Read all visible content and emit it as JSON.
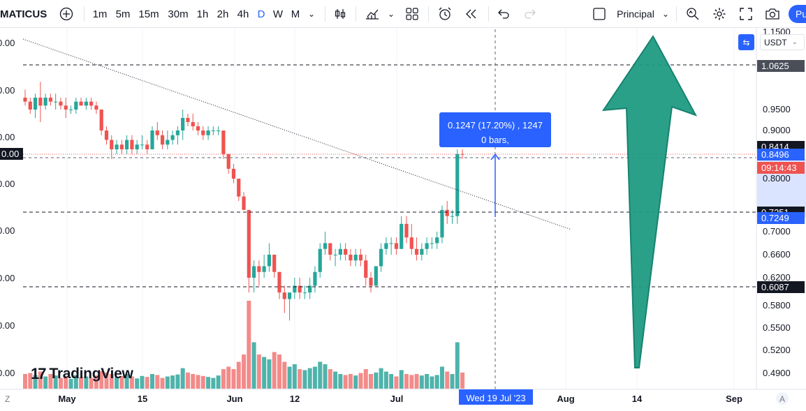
{
  "toolbar": {
    "symbol": "MATICUS",
    "add_symbol_icon": "plus-circle-icon",
    "intervals": [
      "1m",
      "5m",
      "15m",
      "30m",
      "1h",
      "2h",
      "4h",
      "D",
      "W",
      "M"
    ],
    "active_interval": "D",
    "layout_label": "Principal",
    "publish_label": "Pu",
    "accent_color": "#2962ff"
  },
  "price_scale": {
    "currency": "USDT",
    "ticks": [
      "1.1500",
      "0.9500",
      "0.9000",
      "0.8000",
      "0.7000",
      "0.6600",
      "0.6200",
      "0.5800",
      "0.5500",
      "0.5200",
      "0.4900"
    ],
    "left_partial_ticks": [
      "0.00",
      "0.00",
      "0.00",
      "0.00",
      "0.00",
      "0.00",
      "0.00",
      "0.00"
    ],
    "tags": {
      "level_top": "1.0625",
      "last_price": "0.8496",
      "last_price_hidden": "0.8414",
      "countdown": "09:14:43",
      "measure_end": "0.7249",
      "measure_hidden": "0.7251",
      "level_bottom": "0.6087",
      "left_price": "0.00"
    }
  },
  "time_scale": {
    "ticks": [
      "May",
      "15",
      "Jun",
      "12",
      "Jul",
      "Aug",
      "14",
      "Sep"
    ],
    "crosshair_label": "Wed 19 Jul '23",
    "left_corner": "Z",
    "right_corner": "A"
  },
  "measure_tool": {
    "line1": "0.1247 (17.20%) , 1247",
    "line2": "0 bars,"
  },
  "watermark": "TradingView",
  "chart_data": {
    "type": "candlestick",
    "symbol": "MATICUSDT",
    "interval": "1D",
    "horizontal_levels": [
      1.0625,
      0.7251,
      0.6087
    ],
    "colors": {
      "up": "#26a69a",
      "down": "#ef5350",
      "up_volume": "#4fb3ab",
      "down_volume": "#f28b8a",
      "arrow": "#1f9b82"
    },
    "candles": [
      {
        "o": 0.98,
        "h": 1.0,
        "l": 0.96,
        "c": 0.97,
        "v": 0.3
      },
      {
        "o": 0.97,
        "h": 0.98,
        "l": 0.94,
        "c": 0.95,
        "v": 0.32
      },
      {
        "o": 0.95,
        "h": 0.99,
        "l": 0.93,
        "c": 0.98,
        "v": 0.28
      },
      {
        "o": 0.98,
        "h": 1.02,
        "l": 0.92,
        "c": 0.96,
        "v": 0.35
      },
      {
        "o": 0.96,
        "h": 0.99,
        "l": 0.95,
        "c": 0.98,
        "v": 0.25
      },
      {
        "o": 0.98,
        "h": 0.99,
        "l": 0.96,
        "c": 0.97,
        "v": 0.3
      },
      {
        "o": 0.97,
        "h": 0.99,
        "l": 0.95,
        "c": 0.97,
        "v": 0.27
      },
      {
        "o": 0.97,
        "h": 0.98,
        "l": 0.95,
        "c": 0.96,
        "v": 0.22
      },
      {
        "o": 0.96,
        "h": 0.98,
        "l": 0.93,
        "c": 0.95,
        "v": 0.26
      },
      {
        "o": 0.95,
        "h": 0.96,
        "l": 0.94,
        "c": 0.95,
        "v": 0.2
      },
      {
        "o": 0.95,
        "h": 0.98,
        "l": 0.94,
        "c": 0.97,
        "v": 0.28
      },
      {
        "o": 0.97,
        "h": 0.98,
        "l": 0.96,
        "c": 0.96,
        "v": 0.24
      },
      {
        "o": 0.96,
        "h": 0.98,
        "l": 0.95,
        "c": 0.97,
        "v": 0.25
      },
      {
        "o": 0.97,
        "h": 0.98,
        "l": 0.95,
        "c": 0.96,
        "v": 0.22
      },
      {
        "o": 0.96,
        "h": 0.97,
        "l": 0.94,
        "c": 0.95,
        "v": 0.27
      },
      {
        "o": 0.95,
        "h": 0.95,
        "l": 0.89,
        "c": 0.9,
        "v": 0.36
      },
      {
        "o": 0.9,
        "h": 0.91,
        "l": 0.87,
        "c": 0.88,
        "v": 0.33
      },
      {
        "o": 0.88,
        "h": 0.89,
        "l": 0.84,
        "c": 0.86,
        "v": 0.3
      },
      {
        "o": 0.86,
        "h": 0.88,
        "l": 0.85,
        "c": 0.87,
        "v": 0.24
      },
      {
        "o": 0.87,
        "h": 0.88,
        "l": 0.85,
        "c": 0.86,
        "v": 0.26
      },
      {
        "o": 0.86,
        "h": 0.89,
        "l": 0.85,
        "c": 0.88,
        "v": 0.3
      },
      {
        "o": 0.88,
        "h": 0.89,
        "l": 0.85,
        "c": 0.86,
        "v": 0.25
      },
      {
        "o": 0.86,
        "h": 0.88,
        "l": 0.85,
        "c": 0.87,
        "v": 0.21
      },
      {
        "o": 0.87,
        "h": 0.89,
        "l": 0.86,
        "c": 0.87,
        "v": 0.26
      },
      {
        "o": 0.87,
        "h": 0.88,
        "l": 0.85,
        "c": 0.86,
        "v": 0.24
      },
      {
        "o": 0.86,
        "h": 0.91,
        "l": 0.86,
        "c": 0.9,
        "v": 0.3
      },
      {
        "o": 0.9,
        "h": 0.92,
        "l": 0.88,
        "c": 0.89,
        "v": 0.28
      },
      {
        "o": 0.89,
        "h": 0.9,
        "l": 0.86,
        "c": 0.87,
        "v": 0.22
      },
      {
        "o": 0.87,
        "h": 0.9,
        "l": 0.86,
        "c": 0.88,
        "v": 0.25
      },
      {
        "o": 0.88,
        "h": 0.9,
        "l": 0.87,
        "c": 0.89,
        "v": 0.27
      },
      {
        "o": 0.89,
        "h": 0.91,
        "l": 0.87,
        "c": 0.9,
        "v": 0.29
      },
      {
        "o": 0.9,
        "h": 0.95,
        "l": 0.88,
        "c": 0.93,
        "v": 0.42
      },
      {
        "o": 0.93,
        "h": 0.94,
        "l": 0.91,
        "c": 0.92,
        "v": 0.33
      },
      {
        "o": 0.92,
        "h": 0.94,
        "l": 0.9,
        "c": 0.91,
        "v": 0.3
      },
      {
        "o": 0.91,
        "h": 0.92,
        "l": 0.89,
        "c": 0.9,
        "v": 0.28
      },
      {
        "o": 0.9,
        "h": 0.91,
        "l": 0.88,
        "c": 0.89,
        "v": 0.26
      },
      {
        "o": 0.89,
        "h": 0.91,
        "l": 0.88,
        "c": 0.9,
        "v": 0.24
      },
      {
        "o": 0.9,
        "h": 0.91,
        "l": 0.89,
        "c": 0.9,
        "v": 0.22
      },
      {
        "o": 0.9,
        "h": 0.91,
        "l": 0.89,
        "c": 0.9,
        "v": 0.27
      },
      {
        "o": 0.9,
        "h": 0.9,
        "l": 0.84,
        "c": 0.85,
        "v": 0.4
      },
      {
        "o": 0.85,
        "h": 0.85,
        "l": 0.81,
        "c": 0.82,
        "v": 0.45
      },
      {
        "o": 0.82,
        "h": 0.83,
        "l": 0.79,
        "c": 0.8,
        "v": 0.4
      },
      {
        "o": 0.8,
        "h": 0.8,
        "l": 0.75,
        "c": 0.76,
        "v": 0.55
      },
      {
        "o": 0.76,
        "h": 0.77,
        "l": 0.73,
        "c": 0.73,
        "v": 0.7
      },
      {
        "o": 0.73,
        "h": 0.73,
        "l": 0.6,
        "c": 0.62,
        "v": 1.8
      },
      {
        "o": 0.62,
        "h": 0.65,
        "l": 0.6,
        "c": 0.64,
        "v": 0.95
      },
      {
        "o": 0.64,
        "h": 0.65,
        "l": 0.61,
        "c": 0.63,
        "v": 0.7
      },
      {
        "o": 0.63,
        "h": 0.66,
        "l": 0.62,
        "c": 0.64,
        "v": 0.65
      },
      {
        "o": 0.64,
        "h": 0.68,
        "l": 0.63,
        "c": 0.66,
        "v": 0.6
      },
      {
        "o": 0.66,
        "h": 0.66,
        "l": 0.62,
        "c": 0.63,
        "v": 0.75
      },
      {
        "o": 0.63,
        "h": 0.63,
        "l": 0.59,
        "c": 0.6,
        "v": 0.7
      },
      {
        "o": 0.6,
        "h": 0.61,
        "l": 0.57,
        "c": 0.59,
        "v": 0.55
      },
      {
        "o": 0.59,
        "h": 0.6,
        "l": 0.56,
        "c": 0.6,
        "v": 0.45
      },
      {
        "o": 0.6,
        "h": 0.62,
        "l": 0.59,
        "c": 0.61,
        "v": 0.5
      },
      {
        "o": 0.61,
        "h": 0.62,
        "l": 0.59,
        "c": 0.6,
        "v": 0.4
      },
      {
        "o": 0.6,
        "h": 0.61,
        "l": 0.59,
        "c": 0.6,
        "v": 0.38
      },
      {
        "o": 0.6,
        "h": 0.62,
        "l": 0.59,
        "c": 0.61,
        "v": 0.42
      },
      {
        "o": 0.61,
        "h": 0.64,
        "l": 0.6,
        "c": 0.63,
        "v": 0.45
      },
      {
        "o": 0.63,
        "h": 0.68,
        "l": 0.62,
        "c": 0.67,
        "v": 0.55
      },
      {
        "o": 0.67,
        "h": 0.7,
        "l": 0.66,
        "c": 0.68,
        "v": 0.5
      },
      {
        "o": 0.68,
        "h": 0.68,
        "l": 0.65,
        "c": 0.66,
        "v": 0.4
      },
      {
        "o": 0.66,
        "h": 0.67,
        "l": 0.64,
        "c": 0.66,
        "v": 0.35
      },
      {
        "o": 0.66,
        "h": 0.68,
        "l": 0.65,
        "c": 0.67,
        "v": 0.3
      },
      {
        "o": 0.67,
        "h": 0.68,
        "l": 0.65,
        "c": 0.66,
        "v": 0.28
      },
      {
        "o": 0.66,
        "h": 0.67,
        "l": 0.64,
        "c": 0.65,
        "v": 0.3
      },
      {
        "o": 0.65,
        "h": 0.67,
        "l": 0.64,
        "c": 0.66,
        "v": 0.27
      },
      {
        "o": 0.66,
        "h": 0.67,
        "l": 0.64,
        "c": 0.65,
        "v": 0.32
      },
      {
        "o": 0.65,
        "h": 0.66,
        "l": 0.61,
        "c": 0.62,
        "v": 0.4
      },
      {
        "o": 0.62,
        "h": 0.63,
        "l": 0.6,
        "c": 0.61,
        "v": 0.3
      },
      {
        "o": 0.61,
        "h": 0.64,
        "l": 0.61,
        "c": 0.64,
        "v": 0.33
      },
      {
        "o": 0.64,
        "h": 0.68,
        "l": 0.63,
        "c": 0.67,
        "v": 0.42
      },
      {
        "o": 0.67,
        "h": 0.69,
        "l": 0.66,
        "c": 0.68,
        "v": 0.35
      },
      {
        "o": 0.68,
        "h": 0.69,
        "l": 0.66,
        "c": 0.68,
        "v": 0.3
      },
      {
        "o": 0.68,
        "h": 0.69,
        "l": 0.66,
        "c": 0.67,
        "v": 0.25
      },
      {
        "o": 0.67,
        "h": 0.72,
        "l": 0.67,
        "c": 0.71,
        "v": 0.38
      },
      {
        "o": 0.71,
        "h": 0.72,
        "l": 0.68,
        "c": 0.69,
        "v": 0.3
      },
      {
        "o": 0.69,
        "h": 0.71,
        "l": 0.66,
        "c": 0.67,
        "v": 0.28
      },
      {
        "o": 0.67,
        "h": 0.69,
        "l": 0.65,
        "c": 0.66,
        "v": 0.3
      },
      {
        "o": 0.66,
        "h": 0.68,
        "l": 0.65,
        "c": 0.67,
        "v": 0.27
      },
      {
        "o": 0.67,
        "h": 0.69,
        "l": 0.66,
        "c": 0.68,
        "v": 0.3
      },
      {
        "o": 0.68,
        "h": 0.69,
        "l": 0.67,
        "c": 0.68,
        "v": 0.25
      },
      {
        "o": 0.68,
        "h": 0.7,
        "l": 0.67,
        "c": 0.69,
        "v": 0.28
      },
      {
        "o": 0.69,
        "h": 0.74,
        "l": 0.68,
        "c": 0.73,
        "v": 0.45
      },
      {
        "o": 0.73,
        "h": 0.75,
        "l": 0.71,
        "c": 0.72,
        "v": 0.35
      },
      {
        "o": 0.72,
        "h": 0.73,
        "l": 0.71,
        "c": 0.72,
        "v": 0.3
      },
      {
        "o": 0.72,
        "h": 0.86,
        "l": 0.71,
        "c": 0.85,
        "v": 0.95
      },
      {
        "o": 0.85,
        "h": 0.86,
        "l": 0.84,
        "c": 0.8496,
        "v": 0.33
      }
    ]
  }
}
